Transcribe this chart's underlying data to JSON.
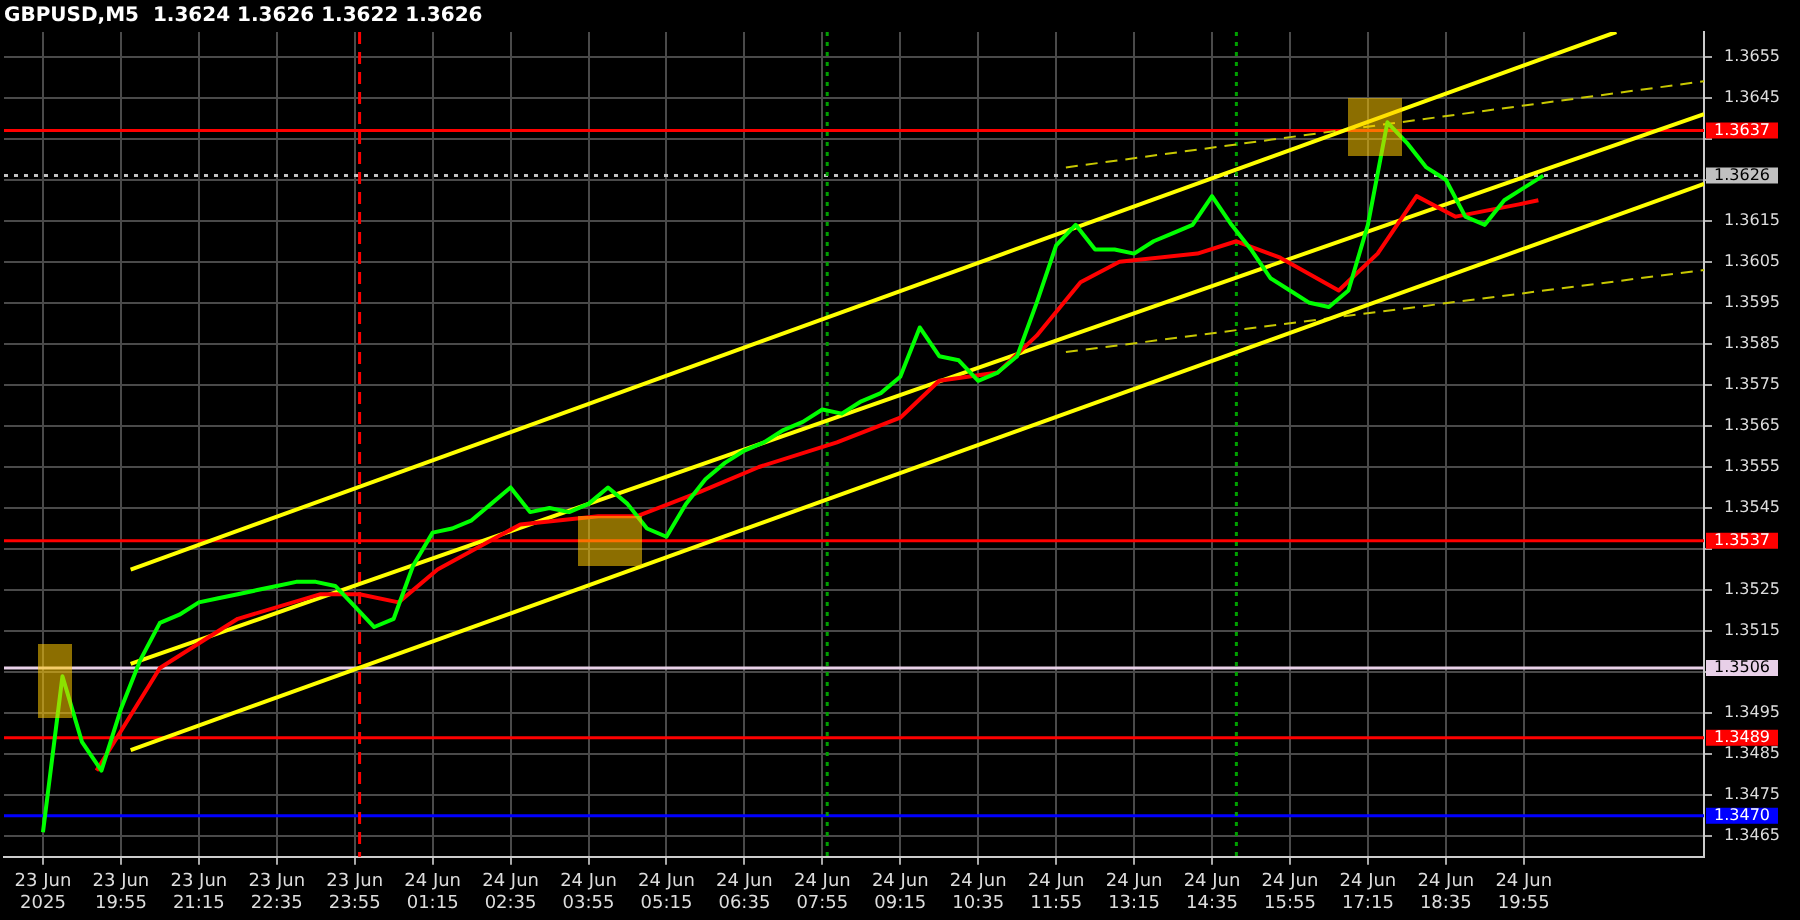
{
  "chart_data": {
    "type": "line",
    "title": "GBPUSD,M5  1.3624 1.3626 1.3622 1.3626",
    "xlim": [
      "2025-06-23T17:55",
      "2025-06-24T23:00"
    ],
    "xticks": [
      {
        "value": "2025-06-23T18:35",
        "label": "23 Jun 2025"
      },
      {
        "value": "2025-06-23T19:55",
        "label": "23 Jun 19:55"
      },
      {
        "value": "2025-06-23T21:15",
        "label": "23 Jun 21:15"
      },
      {
        "value": "2025-06-23T22:35",
        "label": "23 Jun 22:35"
      },
      {
        "value": "2025-06-23T23:55",
        "label": "23 Jun 23:55"
      },
      {
        "value": "2025-06-24T01:15",
        "label": "24 Jun 01:15"
      },
      {
        "value": "2025-06-24T02:35",
        "label": "24 Jun 02:35"
      },
      {
        "value": "2025-06-24T03:55",
        "label": "24 Jun 03:55"
      },
      {
        "value": "2025-06-24T05:15",
        "label": "24 Jun 05:15"
      },
      {
        "value": "2025-06-24T06:35",
        "label": "24 Jun 06:35"
      },
      {
        "value": "2025-06-24T07:55",
        "label": "24 Jun 07:55"
      },
      {
        "value": "2025-06-24T09:15",
        "label": "24 Jun 09:15"
      },
      {
        "value": "2025-06-24T10:35",
        "label": "24 Jun 10:35"
      },
      {
        "value": "2025-06-24T11:55",
        "label": "24 Jun 11:55"
      },
      {
        "value": "2025-06-24T13:15",
        "label": "24 Jun 13:15"
      },
      {
        "value": "2025-06-24T14:35",
        "label": "24 Jun 14:35"
      },
      {
        "value": "2025-06-24T15:55",
        "label": "24 Jun 15:55"
      },
      {
        "value": "2025-06-24T17:15",
        "label": "24 Jun 17:15"
      },
      {
        "value": "2025-06-24T18:35",
        "label": "24 Jun 18:35"
      },
      {
        "value": "2025-06-24T19:55",
        "label": "24 Jun 19:55"
      }
    ],
    "ylim": [
      1.346,
      1.3661
    ],
    "yticks": [
      1.3465,
      1.3475,
      1.3485,
      1.3495,
      {
        "value": 1.3505,
        "label": null
      },
      1.3515,
      1.3525,
      {
        "value": 1.3535,
        "label": null
      },
      1.3545,
      1.3555,
      1.3565,
      1.3575,
      1.3585,
      1.3595,
      1.3605,
      1.3615,
      {
        "value": 1.3625,
        "label": null
      },
      {
        "value": 1.3635,
        "label": null
      },
      1.3645,
      1.3655
    ],
    "grid": true,
    "legend": false,
    "marker": "none",
    "ref_lines": [
      {
        "axis": "y",
        "value": 1.3637,
        "label": "1.3637",
        "color": "#ff0000"
      },
      {
        "axis": "y",
        "value": 1.3626,
        "label": "1.3626",
        "color": "#c0c0c0",
        "line_style": "dotted"
      },
      {
        "axis": "y",
        "value": 1.3537,
        "label": "1.3537",
        "color": "#ff0000"
      },
      {
        "axis": "y",
        "value": 1.3506,
        "label": "1.3506",
        "color": "#e8d0e8"
      },
      {
        "axis": "y",
        "value": 1.3489,
        "label": "1.3489",
        "color": "#ff0000"
      },
      {
        "axis": "y",
        "value": 1.347,
        "label": "1.3470",
        "color": "#0000ff"
      },
      {
        "axis": "x",
        "value": "2025-06-24T00:00",
        "color": "#ff0000",
        "line_style": "dashed"
      },
      {
        "axis": "x",
        "value": "2025-06-24T08:00",
        "color": "#00a000",
        "line_style": "dotted"
      },
      {
        "axis": "x",
        "value": "2025-06-24T15:00",
        "color": "#00a000",
        "line_style": "dotted"
      }
    ],
    "series": [
      {
        "color": "#00ff00",
        "x": [
          "2025-06-23T18:35",
          "2025-06-23T18:55",
          "2025-06-23T19:15",
          "2025-06-23T19:35",
          "2025-06-23T19:55",
          "2025-06-23T20:15",
          "2025-06-23T20:35",
          "2025-06-23T20:55",
          "2025-06-23T21:15",
          "2025-06-23T21:35",
          "2025-06-23T21:55",
          "2025-06-23T22:15",
          "2025-06-23T22:35",
          "2025-06-23T22:55",
          "2025-06-23T23:15",
          "2025-06-23T23:35",
          "2025-06-23T23:55",
          "2025-06-24T00:15",
          "2025-06-24T00:35",
          "2025-06-24T00:55",
          "2025-06-24T01:15",
          "2025-06-24T01:35",
          "2025-06-24T01:55",
          "2025-06-24T02:15",
          "2025-06-24T02:35",
          "2025-06-24T02:55",
          "2025-06-24T03:15",
          "2025-06-24T03:35",
          "2025-06-24T03:55",
          "2025-06-24T04:15",
          "2025-06-24T04:35",
          "2025-06-24T04:55",
          "2025-06-24T05:15",
          "2025-06-24T05:35",
          "2025-06-24T05:55",
          "2025-06-24T06:15",
          "2025-06-24T06:35",
          "2025-06-24T06:55",
          "2025-06-24T07:15",
          "2025-06-24T07:35",
          "2025-06-24T07:55",
          "2025-06-24T08:15",
          "2025-06-24T08:35",
          "2025-06-24T08:55",
          "2025-06-24T09:15",
          "2025-06-24T09:35",
          "2025-06-24T09:55",
          "2025-06-24T10:15",
          "2025-06-24T10:35",
          "2025-06-24T10:55",
          "2025-06-24T11:15",
          "2025-06-24T11:35",
          "2025-06-24T11:55",
          "2025-06-24T12:15",
          "2025-06-24T12:35",
          "2025-06-24T12:55",
          "2025-06-24T13:15",
          "2025-06-24T13:35",
          "2025-06-24T13:55",
          "2025-06-24T14:15",
          "2025-06-24T14:35",
          "2025-06-24T14:55",
          "2025-06-24T15:15",
          "2025-06-24T15:35",
          "2025-06-24T15:55",
          "2025-06-24T16:15",
          "2025-06-24T16:35",
          "2025-06-24T16:55",
          "2025-06-24T17:15",
          "2025-06-24T17:35",
          "2025-06-24T17:55",
          "2025-06-24T18:15",
          "2025-06-24T18:35",
          "2025-06-24T18:55",
          "2025-06-24T19:15",
          "2025-06-24T19:35",
          "2025-06-24T19:55",
          "2025-06-24T20:15"
        ],
        "values": [
          1.3466,
          1.3504,
          1.3488,
          1.3481,
          1.3496,
          1.3508,
          1.3517,
          1.3519,
          1.3522,
          1.3523,
          1.3524,
          1.3525,
          1.3526,
          1.3527,
          1.3527,
          1.3526,
          1.3521,
          1.3516,
          1.3518,
          1.3531,
          1.3539,
          1.354,
          1.3542,
          1.3546,
          1.355,
          1.3544,
          1.3545,
          1.3544,
          1.3546,
          1.355,
          1.3546,
          1.354,
          1.3538,
          1.3546,
          1.3552,
          1.3556,
          1.3559,
          1.3561,
          1.3564,
          1.3566,
          1.3569,
          1.3568,
          1.3571,
          1.3573,
          1.3577,
          1.3589,
          1.3582,
          1.3581,
          1.3576,
          1.3578,
          1.3582,
          1.3595,
          1.3609,
          1.3614,
          1.3608,
          1.3608,
          1.3607,
          1.361,
          1.3612,
          1.3614,
          1.3621,
          1.3614,
          1.3608,
          1.3601,
          1.3598,
          1.3595,
          1.3594,
          1.3598,
          1.3614,
          1.3639,
          1.3634,
          1.3628,
          1.3625,
          1.3616,
          1.3614,
          1.362,
          1.3623,
          1.3626
        ]
      },
      {
        "color": "#ff0000",
        "x": [
          "2025-06-23T19:30",
          "2025-06-23T20:35",
          "2025-06-23T21:55",
          "2025-06-23T23:20",
          "2025-06-24T00:00",
          "2025-06-24T00:40",
          "2025-06-24T01:20",
          "2025-06-24T02:45",
          "2025-06-24T04:05",
          "2025-06-24T04:45",
          "2025-06-24T05:50",
          "2025-06-24T06:50",
          "2025-06-24T08:10",
          "2025-06-24T09:15",
          "2025-06-24T09:55",
          "2025-06-24T10:55",
          "2025-06-24T11:35",
          "2025-06-24T12:20",
          "2025-06-24T13:00",
          "2025-06-24T14:20",
          "2025-06-24T15:00",
          "2025-06-24T15:45",
          "2025-06-24T16:45",
          "2025-06-24T17:25",
          "2025-06-24T18:05",
          "2025-06-24T18:45",
          "2025-06-24T19:50",
          "2025-06-24T20:10"
        ],
        "values": [
          1.3481,
          1.3506,
          1.3518,
          1.3524,
          1.3524,
          1.3522,
          1.353,
          1.3541,
          1.3543,
          1.3543,
          1.3549,
          1.3555,
          1.3561,
          1.3567,
          1.3576,
          1.3578,
          1.3587,
          1.36,
          1.3605,
          1.3607,
          1.361,
          1.3606,
          1.3598,
          1.3607,
          1.3621,
          1.3616,
          1.3619,
          1.362
        ]
      },
      {
        "color": "#ffff00",
        "x": [
          "2025-06-23T20:05",
          "2025-06-24T21:30"
        ],
        "values": [
          1.353,
          1.3661
        ]
      },
      {
        "color": "#ffff00",
        "x": [
          "2025-06-23T20:05",
          "2025-06-24T23:00"
        ],
        "values": [
          1.3507,
          1.3641
        ]
      },
      {
        "color": "#ffff00",
        "x": [
          "2025-06-23T20:05",
          "2025-06-24T23:00"
        ],
        "values": [
          1.3486,
          1.3624
        ]
      },
      {
        "color": "#c8c800",
        "line_style": "dashed",
        "x": [
          "2025-06-24T12:05",
          "2025-06-24T23:00"
        ],
        "values": [
          1.3628,
          1.3649
        ]
      },
      {
        "color": "#c8c800",
        "line_style": "dashed",
        "x": [
          "2025-06-24T12:05",
          "2025-06-24T23:00"
        ],
        "values": [
          1.3583,
          1.3603
        ]
      }
    ]
  }
}
